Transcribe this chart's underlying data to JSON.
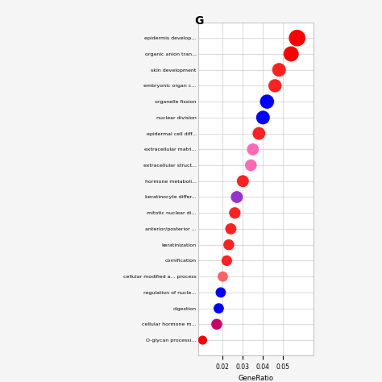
{
  "title": "G",
  "xlabel": "GeneRatio",
  "categories": [
    "epidermis develop...",
    "organic anion tran...",
    "skin development",
    "embryonic organ c...",
    "organelle fission",
    "nuclear division",
    "epidermal cell diff...",
    "extracellular matri...",
    "extracellular struct...",
    "hormone metaboli...",
    "keratinocyte differ...",
    "mitotic nuclear di...",
    "anterior/posterior ...",
    "keratinization",
    "cornification",
    "cellular modified a... process",
    "regulation of nucle...",
    "digestion",
    "cellular hormone m...",
    "O-glycan processi..."
  ],
  "gene_ratio": [
    0.057,
    0.054,
    0.048,
    0.046,
    0.042,
    0.04,
    0.038,
    0.035,
    0.034,
    0.03,
    0.027,
    0.026,
    0.024,
    0.023,
    0.022,
    0.02,
    0.019,
    0.018,
    0.017,
    0.01
  ],
  "colors": [
    "#ff0000",
    "#ff0000",
    "#ff2020",
    "#ff2020",
    "#0000ff",
    "#0000ff",
    "#ff2020",
    "#ff69b4",
    "#ff69b4",
    "#ff2020",
    "#9932cc",
    "#ff2020",
    "#ff2020",
    "#ff2020",
    "#ff2020",
    "#ff6060",
    "#0000ff",
    "#0000ff",
    "#cc0066",
    "#ff0000"
  ],
  "sizes": [
    220,
    185,
    150,
    140,
    160,
    150,
    130,
    115,
    110,
    115,
    115,
    105,
    100,
    95,
    90,
    85,
    85,
    85,
    95,
    65
  ],
  "xlim": [
    0.008,
    0.065
  ],
  "xticks": [
    0.02,
    0.03,
    0.04,
    0.05
  ],
  "background_color": "#f0f0f0",
  "grid_color": "#cccccc",
  "fig_width": 4.74,
  "fig_height": 4.74,
  "fig_dpi": 100
}
